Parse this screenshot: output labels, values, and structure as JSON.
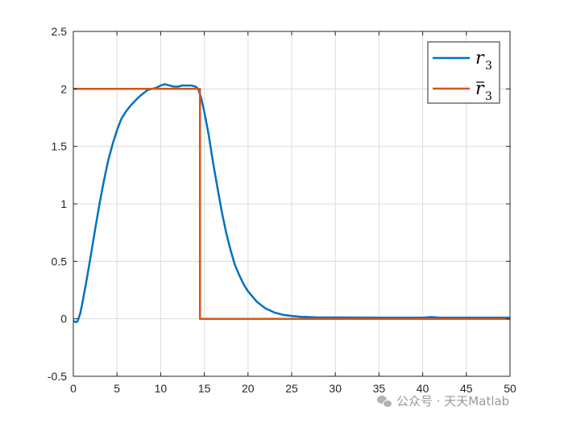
{
  "chart_data": {
    "type": "line",
    "title": "",
    "xlabel": "",
    "ylabel": "",
    "xlim": [
      0,
      50
    ],
    "ylim": [
      -0.5,
      2.5
    ],
    "xticks": [
      "0",
      "5",
      "10",
      "15",
      "20",
      "25",
      "30",
      "35",
      "40",
      "45",
      "50"
    ],
    "yticks": [
      "-0.5",
      "0",
      "0.5",
      "1",
      "1.5",
      "2",
      "2.5"
    ],
    "grid": true,
    "legend_position": "top-right",
    "series": [
      {
        "name": "r",
        "name_sub": "3",
        "name_bar": false,
        "color": "#0072BD",
        "x": [
          0,
          0.3,
          0.5,
          0.8,
          1,
          1.5,
          2,
          2.5,
          3,
          3.5,
          4,
          4.5,
          5,
          5.5,
          6,
          6.5,
          7,
          7.5,
          8,
          8.5,
          9,
          9.5,
          10,
          10.5,
          11,
          11.5,
          12,
          12.5,
          13,
          13.5,
          14,
          14.3,
          14.6,
          15,
          15.5,
          16,
          16.5,
          17,
          17.5,
          18,
          18.5,
          19,
          19.5,
          20,
          21,
          22,
          23,
          24,
          25,
          26,
          27,
          28,
          30,
          35,
          40,
          41,
          42,
          45,
          50
        ],
        "y": [
          -0.02,
          -0.03,
          -0.02,
          0.05,
          0.12,
          0.33,
          0.55,
          0.78,
          1.0,
          1.2,
          1.38,
          1.52,
          1.64,
          1.74,
          1.8,
          1.85,
          1.89,
          1.93,
          1.96,
          1.99,
          2.0,
          2.01,
          2.03,
          2.04,
          2.03,
          2.02,
          2.02,
          2.03,
          2.03,
          2.03,
          2.02,
          2.0,
          1.93,
          1.8,
          1.6,
          1.36,
          1.14,
          0.93,
          0.75,
          0.6,
          0.47,
          0.38,
          0.3,
          0.24,
          0.15,
          0.09,
          0.055,
          0.035,
          0.025,
          0.018,
          0.015,
          0.012,
          0.012,
          0.01,
          0.01,
          0.015,
          0.01,
          0.01,
          0.01
        ]
      },
      {
        "name": "r",
        "name_sub": "3",
        "name_bar": true,
        "color": "#D95319",
        "x": [
          0,
          14.5,
          14.5,
          50
        ],
        "y": [
          2,
          2,
          0,
          0
        ]
      }
    ]
  },
  "watermark": {
    "icon": "wechat-icon",
    "text": "公众号 · 天天Matlab"
  }
}
